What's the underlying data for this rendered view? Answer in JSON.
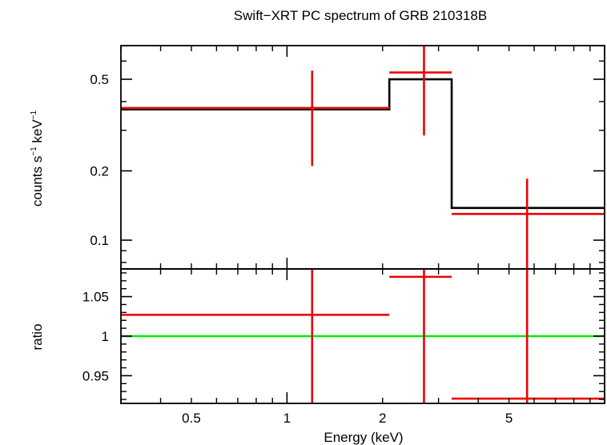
{
  "chart_data": {
    "type": "step-spectrum",
    "title": "Swift−XRT PC spectrum of GRB 210318B",
    "xlabel": "Energy (keV)",
    "xscale": "log",
    "xlim": [
      0.3,
      10
    ],
    "x_ticks": [
      {
        "value": 0.5,
        "label": "0.5"
      },
      {
        "value": 1,
        "label": "1"
      },
      {
        "value": 2,
        "label": "2"
      },
      {
        "value": 5,
        "label": "5"
      }
    ],
    "top_panel": {
      "ylabel_main": "counts s",
      "ylabel_exp1": "−1",
      "ylabel_mid": " keV",
      "ylabel_exp2": "−1",
      "yscale": "log",
      "ylim": [
        0.075,
        0.7
      ],
      "y_ticks": [
        {
          "value": 0.1,
          "label": "0.1"
        },
        {
          "value": 0.2,
          "label": "0.2"
        },
        {
          "value": 0.5,
          "label": "0.5"
        }
      ],
      "data": [
        {
          "x": 1.2,
          "xlo": 0.3,
          "xhi": 2.1,
          "y": 0.375,
          "ylo": 0.21,
          "yhi": 0.545
        },
        {
          "x": 2.7,
          "xlo": 2.1,
          "xhi": 3.3,
          "y": 0.535,
          "ylo": 0.285,
          "yhi": 0.7
        },
        {
          "x": 5.7,
          "xlo": 3.3,
          "xhi": 10,
          "y": 0.13,
          "ylo": 0.075,
          "yhi": 0.185
        }
      ],
      "model": [
        {
          "xlo": 0.3,
          "xhi": 2.1,
          "y": 0.37
        },
        {
          "xlo": 2.1,
          "xhi": 3.3,
          "y": 0.5
        },
        {
          "xlo": 3.3,
          "xhi": 10,
          "y": 0.138
        }
      ]
    },
    "bottom_panel": {
      "ylabel": "ratio",
      "yscale": "linear",
      "ylim": [
        0.915,
        1.085
      ],
      "y_ticks": [
        {
          "value": 0.95,
          "label": "0.95"
        },
        {
          "value": 1,
          "label": "1"
        },
        {
          "value": 1.05,
          "label": "1.05"
        }
      ],
      "reference_line": 1.0,
      "data": [
        {
          "x": 1.2,
          "xlo": 0.3,
          "xhi": 2.1,
          "y": 1.027,
          "ylo": 0.915,
          "yhi": 1.085
        },
        {
          "x": 2.7,
          "xlo": 2.1,
          "xhi": 3.3,
          "y": 1.075,
          "ylo": 0.915,
          "yhi": 1.085
        },
        {
          "x": 5.7,
          "xlo": 3.3,
          "xhi": 10,
          "y": 0.921,
          "ylo": 0.915,
          "yhi": 1.085
        }
      ]
    },
    "colors": {
      "data": "#ee0000",
      "model": "#000000",
      "reference": "#00ee00",
      "axes": "#000000"
    }
  }
}
